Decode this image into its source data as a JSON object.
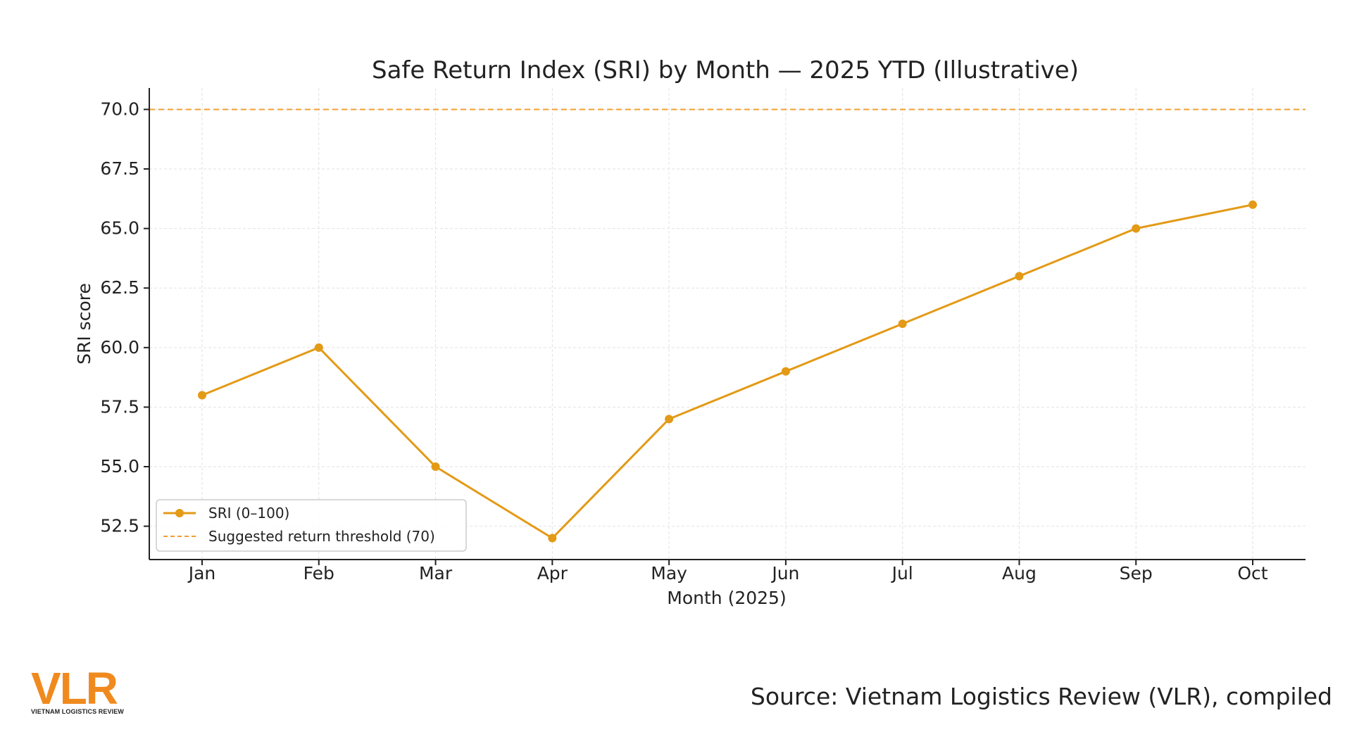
{
  "chart_data": {
    "type": "line",
    "title": "Safe Return Index (SRI) by Month — 2025 YTD (Illustrative)",
    "xlabel": "Month (2025)",
    "ylabel": "SRI score",
    "categories": [
      "Jan",
      "Feb",
      "Mar",
      "Apr",
      "May",
      "Jun",
      "Jul",
      "Aug",
      "Sep",
      "Oct"
    ],
    "series": [
      {
        "name": "SRI (0–100)",
        "values": [
          58,
          60,
          55,
          52,
          57,
          59,
          61,
          63,
          65,
          66
        ],
        "color": "#e39a16",
        "style": "solid-with-markers"
      }
    ],
    "reference_lines": [
      {
        "name": "Suggested return threshold (70)",
        "y": 70,
        "color": "#f0a030",
        "style": "dashed"
      }
    ],
    "ylim": [
      51.1,
      70.9
    ],
    "yticks": [
      52.5,
      55.0,
      57.5,
      60.0,
      62.5,
      65.0,
      67.5,
      70.0
    ],
    "ytick_labels": [
      "52.5",
      "55.0",
      "57.5",
      "60.0",
      "62.5",
      "65.0",
      "67.5",
      "70.0"
    ],
    "grid": true,
    "legend_position": "lower-left"
  },
  "footer": {
    "source": "Source: Vietnam Logistics Review (VLR), compiled",
    "logo_mark": "VLR",
    "logo_subtitle": "VIETNAM LOGISTICS REVIEW",
    "logo_color": "#f08a1f"
  }
}
